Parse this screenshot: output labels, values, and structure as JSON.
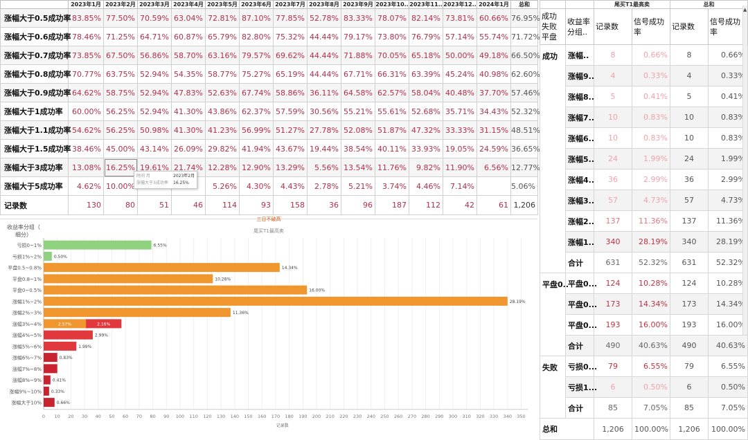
{
  "monthly_table": {
    "columns": [
      "2023年1月",
      "2023年2月",
      "2023年3月",
      "2023年4月",
      "2023年5月",
      "2023年6月",
      "2023年7月",
      "2023年8月",
      "2023年9月",
      "2023年10..",
      "2023年11..",
      "2023年12..",
      "2024年1月",
      "总和"
    ],
    "rows": [
      {
        "label": "涨幅大于0.5成功率",
        "values": [
          "83.85%",
          "77.50%",
          "70.59%",
          "63.04%",
          "72.81%",
          "87.10%",
          "77.85%",
          "52.78%",
          "83.33%",
          "78.07%",
          "82.14%",
          "73.81%",
          "60.66%",
          "76.95%"
        ]
      },
      {
        "label": "涨幅大于0.6成功率",
        "values": [
          "78.46%",
          "71.25%",
          "64.71%",
          "60.87%",
          "65.79%",
          "82.80%",
          "75.32%",
          "44.44%",
          "79.17%",
          "73.80%",
          "76.79%",
          "57.14%",
          "55.74%",
          "71.72%"
        ]
      },
      {
        "label": "涨幅大于0.7成功率",
        "values": [
          "73.85%",
          "67.50%",
          "56.86%",
          "58.70%",
          "63.16%",
          "79.57%",
          "69.62%",
          "44.44%",
          "71.88%",
          "70.05%",
          "65.18%",
          "50.00%",
          "49.18%",
          "66.50%"
        ]
      },
      {
        "label": "涨幅大于0.8成功率",
        "values": [
          "70.77%",
          "63.75%",
          "52.94%",
          "54.35%",
          "58.77%",
          "75.27%",
          "65.19%",
          "44.44%",
          "67.71%",
          "66.31%",
          "63.39%",
          "45.24%",
          "40.98%",
          "62.60%"
        ]
      },
      {
        "label": "涨幅大于0.9成功率",
        "values": [
          "64.62%",
          "58.75%",
          "52.94%",
          "47.83%",
          "52.63%",
          "67.74%",
          "58.86%",
          "36.11%",
          "64.58%",
          "62.57%",
          "58.04%",
          "40.48%",
          "37.70%",
          "57.46%"
        ]
      },
      {
        "label": "涨幅大于1成功率",
        "values": [
          "60.00%",
          "56.25%",
          "52.94%",
          "41.30%",
          "43.86%",
          "62.37%",
          "57.59%",
          "30.56%",
          "55.21%",
          "55.61%",
          "52.68%",
          "35.71%",
          "34.43%",
          "52.32%"
        ]
      },
      {
        "label": "涨幅大于1.1成功率",
        "values": [
          "54.62%",
          "56.25%",
          "50.98%",
          "41.30%",
          "41.23%",
          "56.99%",
          "51.27%",
          "27.78%",
          "52.08%",
          "51.87%",
          "47.32%",
          "33.33%",
          "31.15%",
          "48.51%"
        ]
      },
      {
        "label": "涨幅大于1.5成功率",
        "values": [
          "38.46%",
          "45.00%",
          "43.14%",
          "26.09%",
          "29.82%",
          "41.94%",
          "43.67%",
          "19.44%",
          "38.54%",
          "40.11%",
          "33.93%",
          "19.05%",
          "24.59%",
          "36.65%"
        ]
      },
      {
        "label": "涨幅大于3成功率",
        "values": [
          "13.08%",
          "16.25%",
          "19.61%",
          "21.74%",
          "12.28%",
          "12.90%",
          "13.29%",
          "5.56%",
          "13.54%",
          "11.76%",
          "9.82%",
          "11.90%",
          "6.56%",
          "12.77%"
        ]
      },
      {
        "label": "涨幅大于5成功率",
        "values": [
          "4.62%",
          "10.00%",
          "",
          "",
          "5.26%",
          "4.30%",
          "4.43%",
          "2.78%",
          "5.21%",
          "3.74%",
          "4.46%",
          "7.14%",
          "",
          "5.06%"
        ]
      },
      {
        "label": "记录数",
        "values": [
          "130",
          "80",
          "51",
          "46",
          "114",
          "93",
          "158",
          "36",
          "96",
          "187",
          "112",
          "42",
          "61",
          "1,206"
        ]
      }
    ]
  },
  "tooltip": {
    "line1_key": "时间 月",
    "line1_val": "2023年2月",
    "line2_key": "涨幅大于3成功率",
    "line2_val": "16.25%"
  },
  "chart": {
    "title": "三日不破高",
    "subtitle": "尾买T1最高卖",
    "header_line1": "收益率分组（",
    "header_line2": "细分）",
    "xlabel": "记录数",
    "colors": {
      "green": "#8fd17e",
      "orange": "#f0962e",
      "red": "#e0383c",
      "darkred": "#c8232e"
    }
  },
  "chart_data": {
    "type": "bar",
    "orientation": "horizontal",
    "title": "三日不破高",
    "subtitle": "尾买T1最高卖",
    "xlabel": "记录数",
    "ylabel": "收益率分组（细分）",
    "xlim": [
      0,
      355
    ],
    "xticks": [
      0,
      10,
      20,
      30,
      40,
      50,
      60,
      70,
      80,
      90,
      100,
      110,
      120,
      130,
      140,
      150,
      160,
      170,
      180,
      190,
      200,
      210,
      220,
      230,
      240,
      250,
      260,
      270,
      280,
      290,
      300,
      310,
      320,
      330,
      340,
      350
    ],
    "categories": [
      "亏损0~1%",
      "亏损1%~2%",
      "平盘0.5~0.8%",
      "平盘0.8~1%",
      "平盘0~0.5%",
      "涨幅1%~2%",
      "涨幅2%~3%",
      "涨幅3%~4%",
      "涨幅4%~5%",
      "涨幅5%~6%",
      "涨幅6%~7%",
      "涨幅7%~8%",
      "涨幅8%~9%",
      "涨幅9%~10%",
      "涨幅大于10%"
    ],
    "bars": [
      {
        "segments": [
          {
            "value": 79,
            "label": "6.55%",
            "color": "green"
          }
        ]
      },
      {
        "segments": [
          {
            "value": 6,
            "label": "0.50%",
            "color": "green"
          }
        ]
      },
      {
        "segments": [
          {
            "value": 173,
            "label": "14.34%",
            "color": "orange"
          }
        ]
      },
      {
        "segments": [
          {
            "value": 124,
            "label": "10.28%",
            "color": "orange"
          }
        ]
      },
      {
        "segments": [
          {
            "value": 193,
            "label": "16.00%",
            "color": "orange"
          }
        ]
      },
      {
        "segments": [
          {
            "value": 340,
            "label": "28.19%",
            "color": "orange"
          }
        ]
      },
      {
        "segments": [
          {
            "value": 137,
            "label": "11.36%",
            "color": "orange"
          }
        ]
      },
      {
        "segments": [
          {
            "value": 31,
            "label": "2.57%",
            "color": "orange",
            "inside": true
          },
          {
            "value": 26,
            "label": "2.16%",
            "color": "red",
            "inside": true
          }
        ]
      },
      {
        "segments": [
          {
            "value": 36,
            "label": "2.99%",
            "color": "red"
          }
        ]
      },
      {
        "segments": [
          {
            "value": 24,
            "label": "1.99%",
            "color": "red"
          }
        ]
      },
      {
        "segments": [
          {
            "value": 10,
            "label": "0.83%",
            "color": "darkred"
          }
        ]
      },
      {
        "segments": [
          {
            "value": 10,
            "label": "",
            "color": "darkred"
          }
        ]
      },
      {
        "segments": [
          {
            "value": 5,
            "label": "0.41%",
            "color": "darkred"
          }
        ]
      },
      {
        "segments": [
          {
            "value": 4,
            "label": "0.33%",
            "color": "darkred"
          }
        ]
      },
      {
        "segments": [
          {
            "value": 8,
            "label": "0.66%",
            "color": "darkred"
          }
        ]
      }
    ]
  },
  "side_table": {
    "top_header_1": "尾买T1最高卖",
    "top_header_2": "总和",
    "h_group": "成功失败平盘",
    "h_sub": "收益率分组..",
    "h_count": "记录数",
    "h_rate": "信号成功率",
    "groups": [
      {
        "name": "成功",
        "rows": [
          {
            "label": "涨幅..",
            "c1": "8",
            "p1": "0.66%",
            "c2": "8",
            "p2": "0.66%",
            "tone": "light"
          },
          {
            "label": "涨幅9..",
            "c1": "4",
            "p1": "0.33%",
            "c2": "4",
            "p2": "0.33%",
            "tone": "light"
          },
          {
            "label": "涨幅8..",
            "c1": "5",
            "p1": "0.41%",
            "c2": "5",
            "p2": "0.41%",
            "tone": "light"
          },
          {
            "label": "涨幅7..",
            "c1": "10",
            "p1": "0.83%",
            "c2": "10",
            "p2": "0.83%",
            "tone": "light"
          },
          {
            "label": "涨幅6..",
            "c1": "10",
            "p1": "0.83%",
            "c2": "10",
            "p2": "0.83%",
            "tone": "light"
          },
          {
            "label": "涨幅5..",
            "c1": "24",
            "p1": "1.99%",
            "c2": "24",
            "p2": "1.99%",
            "tone": "light"
          },
          {
            "label": "涨幅4..",
            "c1": "36",
            "p1": "2.99%",
            "c2": "36",
            "p2": "2.99%",
            "tone": "light"
          },
          {
            "label": "涨幅3..",
            "c1": "57",
            "p1": "4.73%",
            "c2": "57",
            "p2": "4.73%",
            "tone": "light"
          },
          {
            "label": "涨幅2..",
            "c1": "137",
            "p1": "11.36%",
            "c2": "137",
            "p2": "11.36%",
            "tone": "mid"
          },
          {
            "label": "涨幅1..",
            "c1": "340",
            "p1": "28.19%",
            "c2": "340",
            "p2": "28.19%",
            "tone": "strong"
          },
          {
            "label": "合计",
            "c1": "631",
            "p1": "52.32%",
            "c2": "631",
            "p2": "52.32%",
            "tone": "subtotal"
          }
        ]
      },
      {
        "name": "平盘0..",
        "rows": [
          {
            "label": "平盘0...",
            "c1": "124",
            "p1": "10.28%",
            "c2": "124",
            "p2": "10.28%",
            "tone": "strong"
          },
          {
            "label": "平盘0...",
            "c1": "173",
            "p1": "14.34%",
            "c2": "173",
            "p2": "14.34%",
            "tone": "strong"
          },
          {
            "label": "平盘0...",
            "c1": "193",
            "p1": "16.00%",
            "c2": "193",
            "p2": "16.00%",
            "tone": "strong"
          },
          {
            "label": "合计",
            "c1": "490",
            "p1": "40.63%",
            "c2": "490",
            "p2": "40.63%",
            "tone": "subtotal"
          }
        ]
      },
      {
        "name": "失败",
        "rows": [
          {
            "label": "亏损0...",
            "c1": "79",
            "p1": "6.55%",
            "c2": "79",
            "p2": "6.55%",
            "tone": "strong"
          },
          {
            "label": "亏损1...",
            "c1": "6",
            "p1": "0.50%",
            "c2": "6",
            "p2": "0.50%",
            "tone": "light"
          },
          {
            "label": "合计",
            "c1": "85",
            "p1": "7.05%",
            "c2": "85",
            "p2": "7.05%",
            "tone": "subtotal"
          }
        ]
      }
    ],
    "grand": {
      "label": "总和",
      "c1": "1,206",
      "p1": "100.00%",
      "c2": "1,206",
      "p2": "100.00%"
    }
  }
}
